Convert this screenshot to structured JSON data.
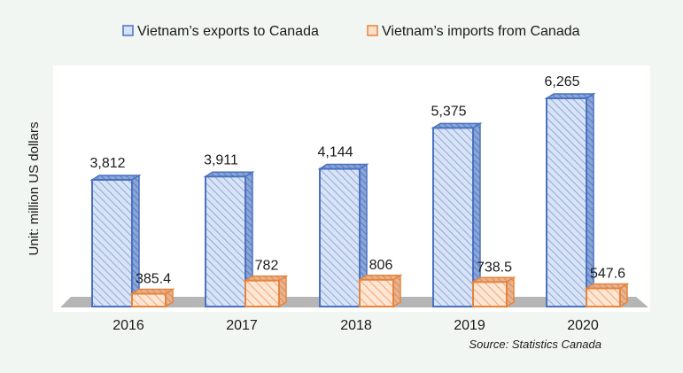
{
  "chart_data": {
    "type": "bar",
    "title": "",
    "xlabel": "",
    "ylabel": "Unit: million US dollars",
    "categories": [
      "2016",
      "2017",
      "2018",
      "2019",
      "2020"
    ],
    "series": [
      {
        "name": "Vietnam’s exports to Canada",
        "values": [
          3812,
          3911,
          4144,
          5375,
          6265
        ],
        "labels": [
          "3,812",
          "3,911",
          "4,144",
          "5,375",
          "6,265"
        ],
        "color": "#4a72c0",
        "fill": "#d6e2f6"
      },
      {
        "name": "Vietnam’s imports from Canada",
        "values": [
          385.4,
          782,
          806,
          738.5,
          547.6
        ],
        "labels": [
          "385.4",
          "782",
          "806",
          "738.5",
          "547.6"
        ],
        "color": "#e8833a",
        "fill": "#fbe0cc"
      }
    ],
    "ylim": [
      0,
      6600
    ],
    "grid": false,
    "legend_position": "top",
    "style": "3d-hatched",
    "source": "Source: Statistics Canada"
  }
}
